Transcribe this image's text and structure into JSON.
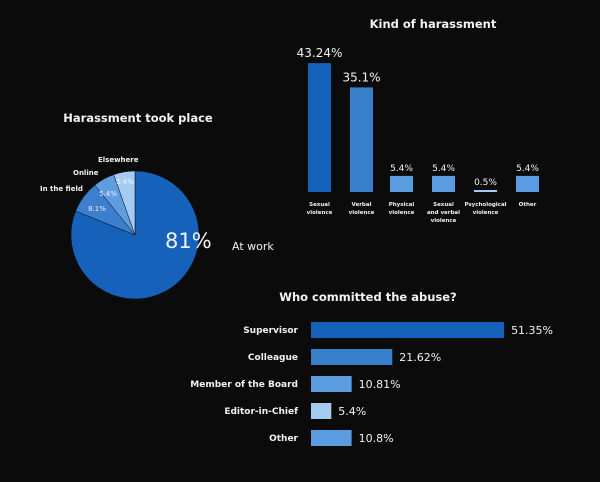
{
  "chart_data": [
    {
      "type": "pie",
      "title": "Harassment took place",
      "slices": [
        {
          "label": "At work",
          "value": 81,
          "value_label": "81%",
          "color": "#1661b9"
        },
        {
          "label": "In the field",
          "value": 8.1,
          "value_label": "8.1%",
          "color": "#3c7fcd"
        },
        {
          "label": "Online",
          "value": 5.4,
          "value_label": "5.4%",
          "color": "#5f9de0"
        },
        {
          "label": "Elsewhere",
          "value": 5.4,
          "value_label": "5.4%",
          "color": "#a6cbf3"
        }
      ]
    },
    {
      "type": "bar",
      "orientation": "vertical",
      "title": "Kind of harassment",
      "categories": [
        "Sexual violence",
        "Verbal violence",
        "Physical violence",
        "Sexual and verbal violence",
        "Psychological violence",
        "Other"
      ],
      "category_lines": [
        [
          "Sexual",
          "violence"
        ],
        [
          "Verbal",
          "violence"
        ],
        [
          "Physical",
          "violence"
        ],
        [
          "Sexual",
          "and verbal",
          "violence"
        ],
        [
          "Psychological",
          "violence"
        ],
        [
          "Other"
        ]
      ],
      "values": [
        43.24,
        35.1,
        5.4,
        5.4,
        0.5,
        5.4
      ],
      "value_labels": [
        "43.24%",
        "35.1%",
        "5.4%",
        "5.4%",
        "0.5%",
        "5.4%"
      ],
      "colors": [
        "#1661b9",
        "#3a7fcc",
        "#5b9ce0",
        "#5b9ce0",
        "#a6cbf3",
        "#5b9ce0"
      ]
    },
    {
      "type": "bar",
      "orientation": "horizontal",
      "title": "Who committed the abuse?",
      "categories": [
        "Supervisor",
        "Colleague",
        "Member of the Board",
        "Editor-in-Chief",
        "Other"
      ],
      "values": [
        51.35,
        21.62,
        10.81,
        5.4,
        10.8
      ],
      "value_labels": [
        "51.35%",
        "21.62%",
        "10.81%",
        "5.4%",
        "10.8%"
      ],
      "colors": [
        "#1661b9",
        "#3a7fcc",
        "#5b9ce0",
        "#a6cbf3",
        "#5b9ce0"
      ]
    }
  ]
}
